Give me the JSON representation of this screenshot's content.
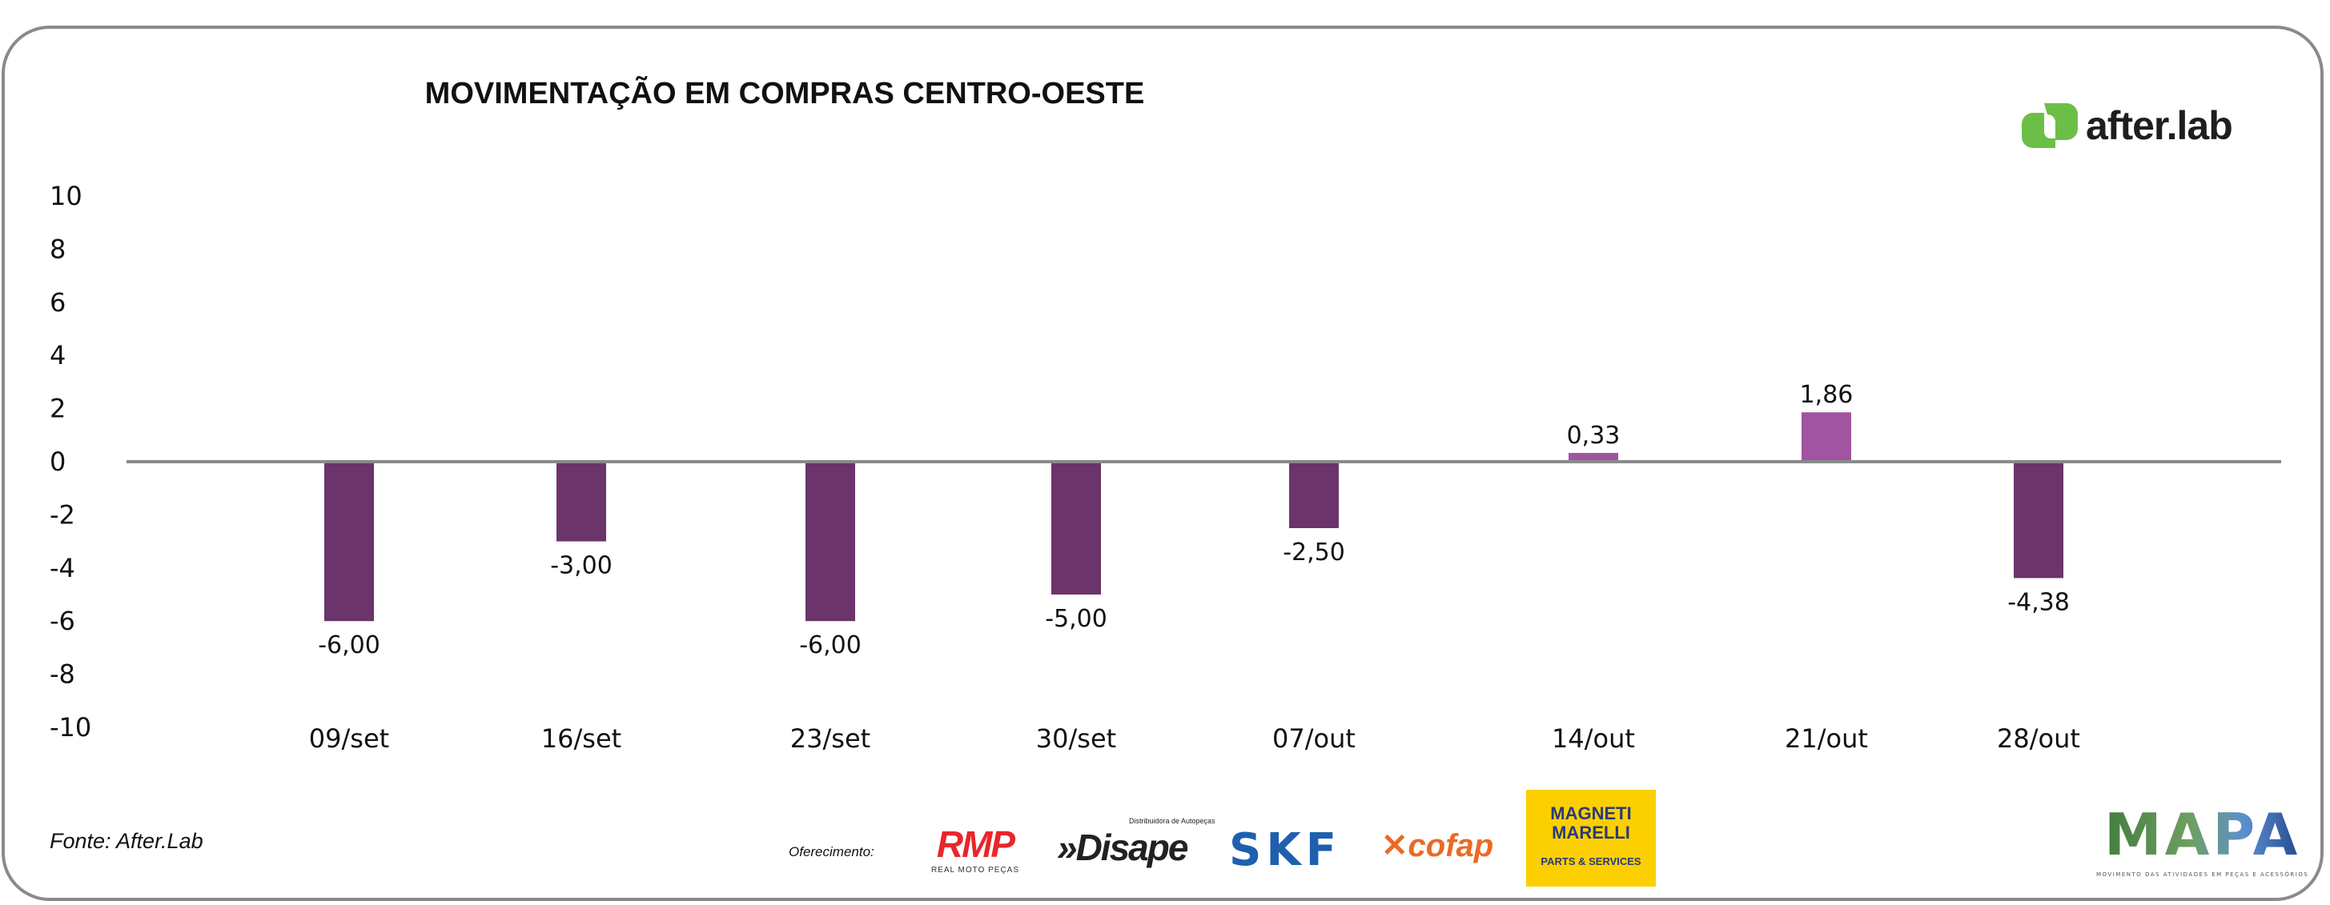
{
  "header": {
    "title": "MOVIMENTAÇÃO EM COMPRAS CENTRO-OESTE",
    "brand": "after.lab"
  },
  "chart_data": {
    "type": "bar",
    "title": "MOVIMENTAÇÃO EM COMPRAS CENTRO-OESTE",
    "categories": [
      "09/set",
      "16/set",
      "23/set",
      "30/set",
      "07/out",
      "14/out",
      "21/out",
      "28/out"
    ],
    "values": [
      -6.0,
      -3.0,
      -6.0,
      -5.0,
      -2.5,
      0.33,
      1.86,
      -4.38
    ],
    "value_labels": [
      "-6,00",
      "-3,00",
      "-6,00",
      "-5,00",
      "-2,50",
      "0,33",
      "1,86",
      "-4,38"
    ],
    "yticks": [
      "10",
      "8",
      "6",
      "4",
      "2",
      "0",
      "-2",
      "-4",
      "-6",
      "-8",
      "-10"
    ],
    "ylim": [
      -10,
      10
    ],
    "xlabel": "",
    "ylabel": "",
    "grid": false,
    "colors": {
      "negative": "#6b346b",
      "positive": "#a155a0",
      "axis": "#8a8a8a"
    }
  },
  "footer": {
    "source": "Fonte: After.Lab",
    "offer_label": "Oferecimento:",
    "sponsors": {
      "rmp": "RMP",
      "rmp_sub": "REAL MOTO PEÇAS",
      "disape": "»Disape",
      "disape_sub": "Distribuidora de Autopeças",
      "skf": "SKF",
      "cofap": "cofap",
      "magneti": "MAGNETI MARELLI",
      "magneti_sub": "PARTS & SERVICES"
    },
    "mapa": "MAPA",
    "mapa_sub": "MOVIMENTO DAS ATIVIDADES EM PEÇAS E ACESSÓRIOS"
  }
}
